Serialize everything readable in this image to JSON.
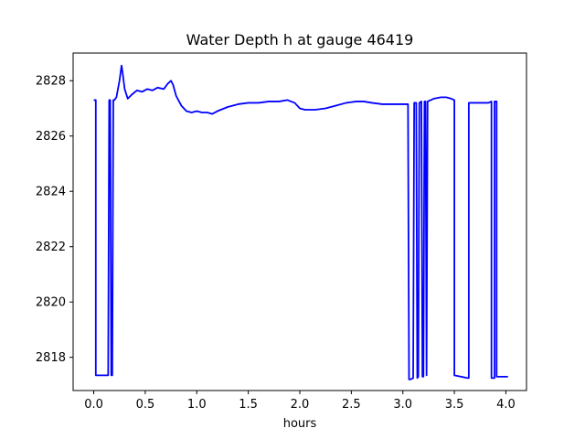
{
  "chart_data": {
    "type": "line",
    "title": "Water Depth h at gauge 46419",
    "xlabel": "hours",
    "ylabel": "",
    "xlim": [
      -0.2,
      4.2
    ],
    "ylim": [
      2816.8,
      2829.0
    ],
    "xticks": [
      0.0,
      0.5,
      1.0,
      1.5,
      2.0,
      2.5,
      3.0,
      3.5,
      4.0
    ],
    "xtick_labels": [
      "0.0",
      "0.5",
      "1.0",
      "1.5",
      "2.0",
      "2.5",
      "3.0",
      "3.5",
      "4.0"
    ],
    "yticks": [
      2818,
      2820,
      2822,
      2824,
      2826,
      2828
    ],
    "ytick_labels": [
      "2818",
      "2820",
      "2822",
      "2824",
      "2826",
      "2828"
    ],
    "grid": false,
    "series": [
      {
        "name": "",
        "color": "#0000ff",
        "x": [
          0.0,
          0.02,
          0.02,
          0.14,
          0.15,
          0.16,
          0.17,
          0.18,
          0.19,
          0.2,
          0.22,
          0.25,
          0.27,
          0.28,
          0.3,
          0.33,
          0.37,
          0.42,
          0.47,
          0.52,
          0.57,
          0.62,
          0.68,
          0.72,
          0.75,
          0.77,
          0.8,
          0.85,
          0.9,
          0.95,
          1.0,
          1.05,
          1.1,
          1.15,
          1.2,
          1.3,
          1.4,
          1.5,
          1.6,
          1.7,
          1.8,
          1.88,
          1.95,
          2.0,
          2.05,
          2.15,
          2.25,
          2.35,
          2.45,
          2.55,
          2.62,
          2.7,
          2.8,
          2.9,
          3.0,
          3.05,
          3.06,
          3.07,
          3.1,
          3.11,
          3.13,
          3.14,
          3.15,
          3.16,
          3.18,
          3.19,
          3.2,
          3.21,
          3.22,
          3.23,
          3.24,
          3.3,
          3.37,
          3.42,
          3.47,
          3.5,
          3.5,
          3.63,
          3.64,
          3.64,
          3.83,
          3.86,
          3.86,
          3.89,
          3.89,
          3.91,
          3.91,
          3.92,
          4.02
        ],
        "y": [
          2827.3,
          2827.3,
          2817.35,
          2817.35,
          2827.3,
          2827.3,
          2817.35,
          2817.35,
          2827.3,
          2827.3,
          2827.4,
          2828.0,
          2828.55,
          2828.3,
          2827.7,
          2827.35,
          2827.5,
          2827.65,
          2827.6,
          2827.7,
          2827.65,
          2827.75,
          2827.7,
          2827.9,
          2828.0,
          2827.85,
          2827.45,
          2827.1,
          2826.9,
          2826.85,
          2826.9,
          2826.85,
          2826.85,
          2826.8,
          2826.9,
          2827.05,
          2827.15,
          2827.2,
          2827.2,
          2827.25,
          2827.25,
          2827.3,
          2827.2,
          2827.0,
          2826.95,
          2826.95,
          2827.0,
          2827.1,
          2827.2,
          2827.25,
          2827.25,
          2827.2,
          2827.15,
          2827.15,
          2827.15,
          2827.15,
          2817.2,
          2817.2,
          2817.25,
          2827.2,
          2827.2,
          2817.25,
          2817.3,
          2827.2,
          2827.25,
          2817.3,
          2817.3,
          2827.25,
          2827.25,
          2817.35,
          2827.25,
          2827.35,
          2827.4,
          2827.4,
          2827.35,
          2827.3,
          2817.35,
          2817.25,
          2817.25,
          2827.2,
          2827.2,
          2827.25,
          2817.25,
          2817.25,
          2827.25,
          2827.25,
          2817.3,
          2817.3,
          2817.3
        ]
      }
    ]
  }
}
